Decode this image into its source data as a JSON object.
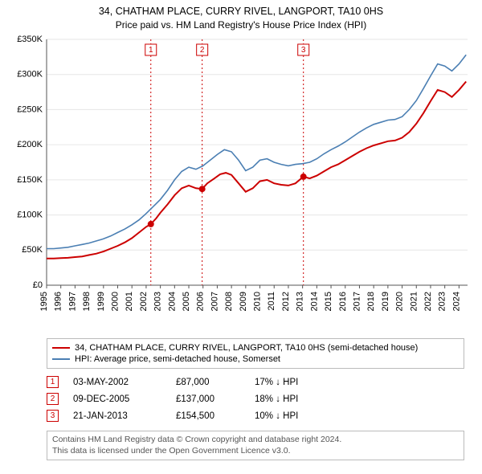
{
  "title_line1": "34, CHATHAM PLACE, CURRY RIVEL, LANGPORT, TA10 0HS",
  "title_line2": "Price paid vs. HM Land Registry's House Price Index (HPI)",
  "chart": {
    "type": "line",
    "background_color": "#ffffff",
    "grid_color": "#e6e6e6",
    "axis_color": "#555555",
    "tick_font_size": 11,
    "x_years": [
      1995,
      1996,
      1997,
      1998,
      1999,
      2000,
      2001,
      2002,
      2003,
      2004,
      2005,
      2006,
      2007,
      2008,
      2009,
      2010,
      2011,
      2012,
      2013,
      2014,
      2015,
      2016,
      2017,
      2018,
      2019,
      2020,
      2021,
      2022,
      2023,
      2024
    ],
    "xlim": [
      1995,
      2024.6
    ],
    "y_ticks": [
      0,
      50000,
      100000,
      150000,
      200000,
      250000,
      300000,
      350000
    ],
    "y_tick_labels": [
      "£0",
      "£50K",
      "£100K",
      "£150K",
      "£200K",
      "£250K",
      "£300K",
      "£350K"
    ],
    "ylim": [
      0,
      350000
    ],
    "series": [
      {
        "key": "property",
        "color": "#cc0000",
        "width": 2,
        "points": [
          [
            1995.0,
            38000
          ],
          [
            1995.5,
            38000
          ],
          [
            1996.0,
            38500
          ],
          [
            1996.5,
            39000
          ],
          [
            1997.0,
            40000
          ],
          [
            1997.5,
            41000
          ],
          [
            1998.0,
            43000
          ],
          [
            1998.5,
            45000
          ],
          [
            1999.0,
            48000
          ],
          [
            1999.5,
            52000
          ],
          [
            2000.0,
            56000
          ],
          [
            2000.5,
            61000
          ],
          [
            2001.0,
            67000
          ],
          [
            2001.5,
            75000
          ],
          [
            2002.0,
            83000
          ],
          [
            2002.33,
            87000
          ],
          [
            2002.7,
            95000
          ],
          [
            2003.0,
            103000
          ],
          [
            2003.5,
            115000
          ],
          [
            2004.0,
            128000
          ],
          [
            2004.5,
            138000
          ],
          [
            2005.0,
            142000
          ],
          [
            2005.5,
            138000
          ],
          [
            2005.94,
            137000
          ],
          [
            2006.3,
            145000
          ],
          [
            2006.8,
            152000
          ],
          [
            2007.2,
            158000
          ],
          [
            2007.6,
            160000
          ],
          [
            2008.0,
            157000
          ],
          [
            2008.5,
            145000
          ],
          [
            2009.0,
            133000
          ],
          [
            2009.5,
            138000
          ],
          [
            2010.0,
            148000
          ],
          [
            2010.5,
            150000
          ],
          [
            2011.0,
            145000
          ],
          [
            2011.5,
            143000
          ],
          [
            2012.0,
            142000
          ],
          [
            2012.5,
            145000
          ],
          [
            2013.06,
            154500
          ],
          [
            2013.5,
            152000
          ],
          [
            2014.0,
            156000
          ],
          [
            2014.5,
            162000
          ],
          [
            2015.0,
            168000
          ],
          [
            2015.5,
            172000
          ],
          [
            2016.0,
            178000
          ],
          [
            2016.5,
            184000
          ],
          [
            2017.0,
            190000
          ],
          [
            2017.5,
            195000
          ],
          [
            2018.0,
            199000
          ],
          [
            2018.5,
            202000
          ],
          [
            2019.0,
            205000
          ],
          [
            2019.5,
            206000
          ],
          [
            2020.0,
            210000
          ],
          [
            2020.5,
            218000
          ],
          [
            2021.0,
            230000
          ],
          [
            2021.5,
            245000
          ],
          [
            2022.0,
            262000
          ],
          [
            2022.5,
            278000
          ],
          [
            2023.0,
            275000
          ],
          [
            2023.5,
            268000
          ],
          [
            2024.0,
            278000
          ],
          [
            2024.5,
            290000
          ]
        ]
      },
      {
        "key": "hpi",
        "color": "#4b7fb3",
        "width": 1.6,
        "points": [
          [
            1995.0,
            52000
          ],
          [
            1995.5,
            52000
          ],
          [
            1996.0,
            53000
          ],
          [
            1996.5,
            54000
          ],
          [
            1997.0,
            56000
          ],
          [
            1997.5,
            58000
          ],
          [
            1998.0,
            60000
          ],
          [
            1998.5,
            63000
          ],
          [
            1999.0,
            66000
          ],
          [
            1999.5,
            70000
          ],
          [
            2000.0,
            75000
          ],
          [
            2000.5,
            80000
          ],
          [
            2001.0,
            86000
          ],
          [
            2001.5,
            93000
          ],
          [
            2002.0,
            102000
          ],
          [
            2002.5,
            112000
          ],
          [
            2003.0,
            122000
          ],
          [
            2003.5,
            135000
          ],
          [
            2004.0,
            150000
          ],
          [
            2004.5,
            162000
          ],
          [
            2005.0,
            168000
          ],
          [
            2005.5,
            165000
          ],
          [
            2006.0,
            170000
          ],
          [
            2006.5,
            178000
          ],
          [
            2007.0,
            186000
          ],
          [
            2007.5,
            193000
          ],
          [
            2008.0,
            190000
          ],
          [
            2008.5,
            178000
          ],
          [
            2009.0,
            163000
          ],
          [
            2009.5,
            168000
          ],
          [
            2010.0,
            178000
          ],
          [
            2010.5,
            180000
          ],
          [
            2011.0,
            175000
          ],
          [
            2011.5,
            172000
          ],
          [
            2012.0,
            170000
          ],
          [
            2012.5,
            172000
          ],
          [
            2013.0,
            173000
          ],
          [
            2013.5,
            175000
          ],
          [
            2014.0,
            180000
          ],
          [
            2014.5,
            187000
          ],
          [
            2015.0,
            193000
          ],
          [
            2015.5,
            198000
          ],
          [
            2016.0,
            204000
          ],
          [
            2016.5,
            211000
          ],
          [
            2017.0,
            218000
          ],
          [
            2017.5,
            224000
          ],
          [
            2018.0,
            229000
          ],
          [
            2018.5,
            232000
          ],
          [
            2019.0,
            235000
          ],
          [
            2019.5,
            236000
          ],
          [
            2020.0,
            240000
          ],
          [
            2020.5,
            250000
          ],
          [
            2021.0,
            263000
          ],
          [
            2021.5,
            280000
          ],
          [
            2022.0,
            298000
          ],
          [
            2022.5,
            315000
          ],
          [
            2023.0,
            312000
          ],
          [
            2023.5,
            305000
          ],
          [
            2024.0,
            315000
          ],
          [
            2024.5,
            328000
          ]
        ]
      }
    ],
    "sale_markers": [
      {
        "n": "1",
        "x": 2002.33,
        "y": 87000,
        "color": "#cc0000",
        "label_y_offset": -300
      },
      {
        "n": "2",
        "x": 2005.94,
        "y": 137000,
        "color": "#cc0000",
        "label_y_offset": -300
      },
      {
        "n": "3",
        "x": 2013.06,
        "y": 154500,
        "color": "#cc0000",
        "label_y_offset": -300
      }
    ],
    "marker_line_color": "#cc0000",
    "marker_line_dash": "2,3"
  },
  "legend": {
    "items": [
      {
        "color": "#cc0000",
        "label": "34, CHATHAM PLACE, CURRY RIVEL, LANGPORT, TA10 0HS (semi-detached house)"
      },
      {
        "color": "#4b7fb3",
        "label": "HPI: Average price, semi-detached house, Somerset"
      }
    ]
  },
  "sales": [
    {
      "n": "1",
      "color": "#cc0000",
      "date": "03-MAY-2002",
      "price": "£87,000",
      "diff": "17% ↓ HPI"
    },
    {
      "n": "2",
      "color": "#cc0000",
      "date": "09-DEC-2005",
      "price": "£137,000",
      "diff": "18% ↓ HPI"
    },
    {
      "n": "3",
      "color": "#cc0000",
      "date": "21-JAN-2013",
      "price": "£154,500",
      "diff": "10% ↓ HPI"
    }
  ],
  "attribution_line1": "Contains HM Land Registry data © Crown copyright and database right 2024.",
  "attribution_line2": "This data is licensed under the Open Government Licence v3.0."
}
